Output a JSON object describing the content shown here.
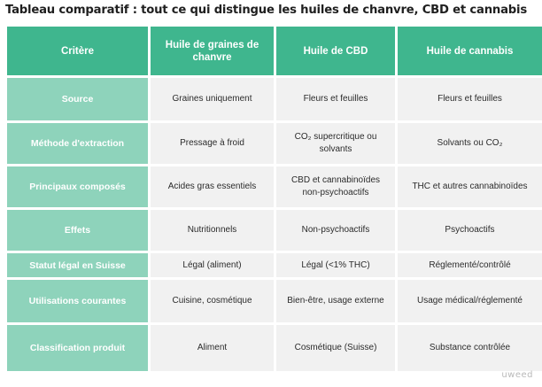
{
  "title": "Tableau comparatif : tout ce qui distingue les huiles de chanvre, CBD et cannabis",
  "table": {
    "headers": [
      "Critère",
      "Huile de graines de chanvre",
      "Huile de CBD",
      "Huile de cannabis"
    ],
    "rows": [
      {
        "label": "Source",
        "cells": [
          "Graines uniquement",
          "Fleurs et feuilles",
          "Fleurs et feuilles"
        ]
      },
      {
        "label": "Méthode d'extraction",
        "cells": [
          "Pressage à froid",
          "CO₂ supercritique ou solvants",
          "Solvants ou CO₂"
        ]
      },
      {
        "label": "Principaux composés",
        "cells": [
          "Acides gras essentiels",
          "CBD et cannabinoïdes non-psychoactifs",
          "THC et autres cannabinoïdes"
        ]
      },
      {
        "label": "Effets",
        "cells": [
          "Nutritionnels",
          "Non-psychoactifs",
          "Psychoactifs"
        ]
      },
      {
        "label": "Statut légal en Suisse",
        "cells": [
          "Légal (aliment)",
          "Légal (<1% THC)",
          "Réglementé/contrôlé"
        ]
      },
      {
        "label": "Utilisations courantes",
        "cells": [
          "Cuisine, cosmétique",
          "Bien-être, usage externe",
          "Usage médical/réglementé"
        ]
      },
      {
        "label": "Classification produit",
        "cells": [
          "Aliment",
          "Cosmétique (Suisse)",
          "Substance contrôlée"
        ]
      }
    ]
  },
  "watermark": "uweed",
  "colors": {
    "header_bg": "#3fb68e",
    "row_label_bg": "#8ed3bb",
    "cell_bg": "#f1f1f1"
  }
}
